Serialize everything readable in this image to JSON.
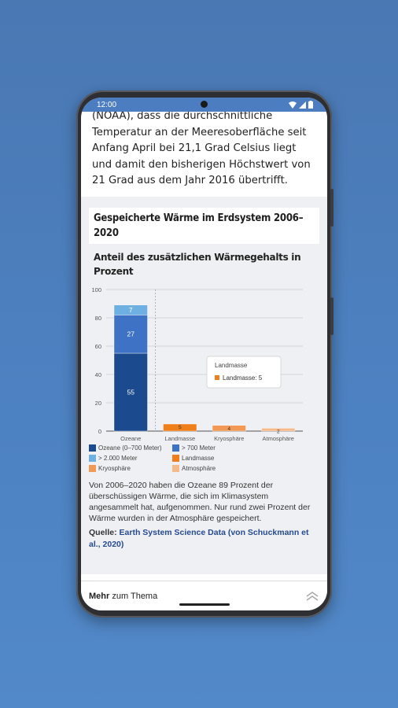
{
  "status": {
    "time": "12:00"
  },
  "article": {
    "intro": "(NOAA), dass die durchschnittliche Temperatur an der Meeresoberfläche seit Anfang April bei 21,1 Grad Celsius liegt und damit den bisherigen Höchstwert von 21 Grad aus dem Jahr 2016 übertrifft."
  },
  "infographic": {
    "title": "Gespeicherte Wärme im Erdsystem 2006–2020",
    "subtitle": "Anteil des zusätzlichen Wärmegehalts in Prozent",
    "description": "Von 2006–2020 haben die Ozeane 89 Prozent der überschüssigen Wärme, die sich im Klimasystem angesammelt hat, aufgenommen. Nur rund zwei Prozent der Wärme wurden in der Atmosphäre gespeichert.",
    "source_label": "Quelle:",
    "source_link": "Earth System Science Data (von Schuckmann et al., 2020)",
    "tooltip": {
      "title": "Landmasse",
      "entry": "Landmasse: 5"
    },
    "legend": [
      {
        "label": "Ozeane (0–700 Meter)",
        "color": "#1b4a8e"
      },
      {
        "label": "> 700 Meter",
        "color": "#3d72c4"
      },
      {
        "label": "> 2.000 Meter",
        "color": "#6fb0e3"
      },
      {
        "label": "Landmasse",
        "color": "#ef7f1a"
      },
      {
        "label": "Kryosphäre",
        "color": "#f29a55"
      },
      {
        "label": "Atmosphäre",
        "color": "#f6b98a"
      }
    ]
  },
  "chart_data": {
    "type": "bar",
    "stacked": true,
    "categories": [
      "Ozeane",
      "Landmasse",
      "Kryosphäre",
      "Atmosphäre"
    ],
    "ylim": [
      0,
      100
    ],
    "yticks": [
      0,
      20,
      40,
      60,
      80,
      100
    ],
    "series": [
      {
        "name": "Ozeane (0–700 Meter)",
        "color": "#1b4a8e",
        "values": [
          55,
          0,
          0,
          0
        ]
      },
      {
        "name": "> 700 Meter",
        "color": "#3d72c4",
        "values": [
          27,
          0,
          0,
          0
        ]
      },
      {
        "name": "> 2.000 Meter",
        "color": "#6fb0e3",
        "values": [
          7,
          0,
          0,
          0
        ]
      },
      {
        "name": "Landmasse",
        "color": "#ef7f1a",
        "values": [
          0,
          5,
          0,
          0
        ]
      },
      {
        "name": "Kryosphäre",
        "color": "#f29a55",
        "values": [
          0,
          0,
          4,
          0
        ]
      },
      {
        "name": "Atmosphäre",
        "color": "#f6b98a",
        "values": [
          0,
          0,
          0,
          2
        ]
      }
    ],
    "data_labels": [
      {
        "category": "Ozeane",
        "series": "Ozeane (0–700 Meter)",
        "text": "55"
      },
      {
        "category": "Ozeane",
        "series": "> 700 Meter",
        "text": "27"
      },
      {
        "category": "Ozeane",
        "series": "> 2.000 Meter",
        "text": "7"
      },
      {
        "category": "Landmasse",
        "series": "Landmasse",
        "text": "5"
      },
      {
        "category": "Kryosphäre",
        "series": "Kryosphäre",
        "text": "4"
      },
      {
        "category": "Atmosphäre",
        "series": "Atmosphäre",
        "text": "2"
      }
    ]
  },
  "bottom_bar": {
    "more_bold": "Mehr",
    "more_rest": " zum Thema"
  }
}
